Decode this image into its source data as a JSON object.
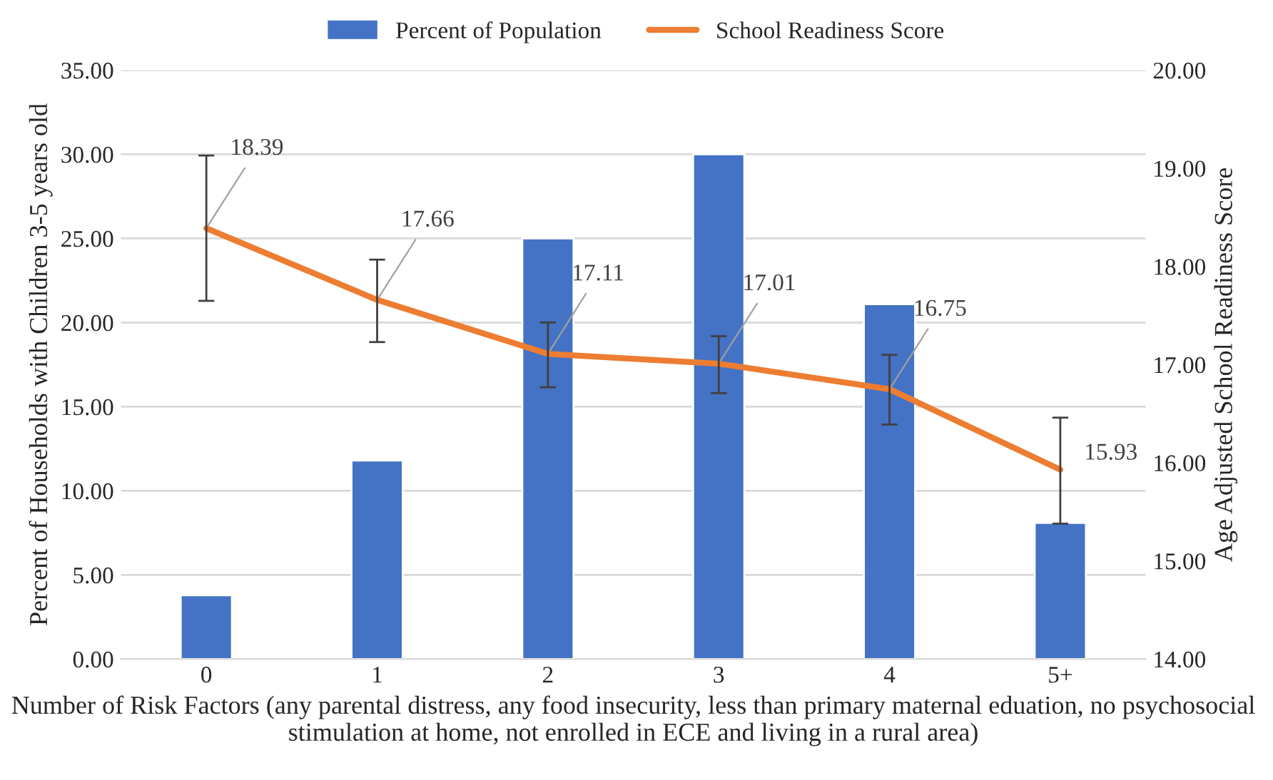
{
  "chart_data": {
    "type": "bar",
    "xlabel": "Number of Risk Factors (any parental distress, any food insecurity, less than primary maternal eduation, no psychosocial stimulation at home, not enrolled in ECE and living in a rural area)",
    "ylabel": "Percent of Households with Children 3-5 years old",
    "y2label": "Age Adjusted School Readiness Score",
    "categories": [
      "0",
      "1",
      "2",
      "3",
      "4",
      "5+"
    ],
    "series": [
      {
        "name": "Percent of Population",
        "color": "#4472c4",
        "values": [
          3.8,
          11.8,
          25.0,
          30.0,
          21.1,
          8.1
        ]
      },
      {
        "name": "School Readiness Score",
        "type": "line",
        "axis": "y2",
        "color": "#ed7d31",
        "values": [
          18.39,
          17.66,
          17.11,
          17.01,
          16.75,
          15.93
        ],
        "value_labels": [
          "18.39",
          "17.66",
          "17.11",
          "17.01",
          "16.75",
          "15.93"
        ],
        "errors": [
          [
            17.65,
            19.13
          ],
          [
            17.23,
            18.07
          ],
          [
            16.77,
            17.43
          ],
          [
            16.71,
            17.29
          ],
          [
            16.39,
            17.1
          ],
          [
            15.38,
            16.46
          ]
        ]
      }
    ],
    "ylim": [
      0,
      35
    ],
    "yticks": [
      {
        "value": 0,
        "label": "0.00"
      },
      {
        "value": 5,
        "label": "5.00"
      },
      {
        "value": 10,
        "label": "10.00"
      },
      {
        "value": 15,
        "label": "15.00"
      },
      {
        "value": 20,
        "label": "20.00"
      },
      {
        "value": 25,
        "label": "25.00"
      },
      {
        "value": 30,
        "label": "30.00"
      },
      {
        "value": 35,
        "label": "35.00"
      }
    ],
    "y2lim": [
      14,
      20
    ],
    "y2ticks": [
      {
        "value": 14,
        "label": "14.00"
      },
      {
        "value": 15,
        "label": "15.00"
      },
      {
        "value": 16,
        "label": "16.00"
      },
      {
        "value": 17,
        "label": "17.00"
      },
      {
        "value": 18,
        "label": "18.00"
      },
      {
        "value": 19,
        "label": "19.00"
      },
      {
        "value": 20,
        "label": "20.00"
      }
    ],
    "grid": "y",
    "legend": "top"
  }
}
